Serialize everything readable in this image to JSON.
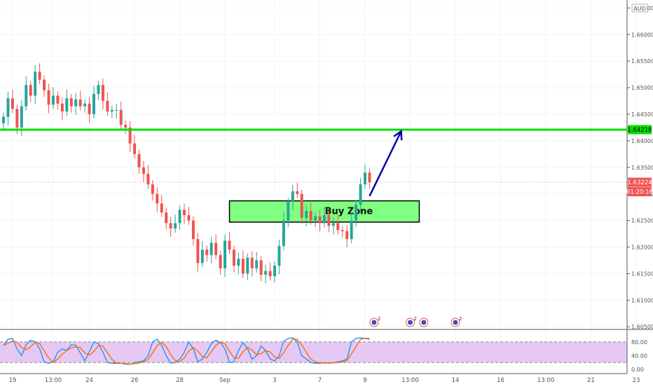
{
  "chart_data": {
    "type": "candlestick",
    "currency": "AUD",
    "price_axis": {
      "min": 1.6045,
      "max": 1.6665,
      "ticks": [
        "1.66500",
        "1.66000",
        "1.65500",
        "1.65000",
        "1.64500",
        "1.64000",
        "1.63500",
        "1.63000",
        "1.62500",
        "1.62000",
        "1.61500",
        "1.61000",
        "1.60500"
      ],
      "tick_values": [
        1.665,
        1.66,
        1.655,
        1.65,
        1.645,
        1.64,
        1.635,
        1.63,
        1.625,
        1.62,
        1.615,
        1.61,
        1.605
      ]
    },
    "time_axis": {
      "labels": [
        "19",
        "13:00",
        "24",
        "26",
        "28",
        "Sep",
        "3",
        "7",
        "9",
        "13:00",
        "14",
        "16",
        "13:00",
        "21",
        "23"
      ],
      "label_index": [
        2,
        11,
        19,
        29,
        39,
        49,
        60,
        70,
        80,
        90,
        100,
        110,
        120,
        130,
        140
      ]
    },
    "resistance_line": {
      "price": 1.6421,
      "label": "1.64218",
      "color": "#00e000"
    },
    "current_price": {
      "label": "1.63224",
      "countdown": "01:20:16",
      "price": 1.6322,
      "color": "#ef5350"
    },
    "buy_zone": {
      "label": "Buy Zone",
      "price_top": 1.6287,
      "price_bottom": 1.6247,
      "bar_start": 50,
      "bar_end": 92,
      "fill": "#80ff80"
    },
    "arrow": {
      "from_bar": 81,
      "from_price": 1.6296,
      "to_bar": 88,
      "to_price": 1.6418,
      "color": "#0000aa"
    },
    "closes": [
      1.6445,
      1.648,
      1.646,
      1.6425,
      1.6465,
      1.6505,
      1.6485,
      1.653,
      1.6515,
      1.6495,
      1.6468,
      1.6485,
      1.647,
      1.6455,
      1.648,
      1.6465,
      1.6478,
      1.6465,
      1.647,
      1.645,
      1.6488,
      1.6505,
      1.6475,
      1.6455,
      1.6458,
      1.6458,
      1.643,
      1.6425,
      1.6395,
      1.6375,
      1.635,
      1.6338,
      1.6318,
      1.63,
      1.6282,
      1.6265,
      1.6245,
      1.6235,
      1.6245,
      1.627,
      1.626,
      1.625,
      1.6215,
      1.617,
      1.6195,
      1.6185,
      1.6208,
      1.6185,
      1.616,
      1.6212,
      1.6195,
      1.6165,
      1.6178,
      1.615,
      1.618,
      1.616,
      1.6175,
      1.6148,
      1.6155,
      1.6145,
      1.6165,
      1.6202,
      1.625,
      1.6285,
      1.6305,
      1.63,
      1.6255,
      1.6268,
      1.625,
      1.6258,
      1.6245,
      1.626,
      1.624,
      1.6245,
      1.6232,
      1.623,
      1.6215,
      1.625,
      1.628,
      1.6318,
      1.634,
      1.6322
    ],
    "stochastic": {
      "axis_ticks": [
        "80.00",
        "40.00",
        "0.00"
      ],
      "tick_values": [
        80,
        40,
        0
      ],
      "band_upper": 80,
      "band_lower": 20,
      "band_fill": "#e6c8f5",
      "k_color": "#2196f3",
      "d_color": "#ff6d00",
      "values": [
        70,
        88,
        90,
        60,
        40,
        72,
        85,
        80,
        60,
        22,
        18,
        22,
        50,
        60,
        55,
        72,
        70,
        48,
        25,
        52,
        80,
        75,
        50,
        20,
        18,
        18,
        18,
        15,
        15,
        20,
        22,
        25,
        40,
        80,
        88,
        70,
        40,
        18,
        20,
        30,
        50,
        80,
        60,
        22,
        30,
        50,
        75,
        85,
        78,
        60,
        20,
        22,
        55,
        78,
        60,
        30,
        40,
        68,
        55,
        30,
        25,
        40,
        82,
        90,
        92,
        80,
        40,
        30,
        20,
        18,
        18,
        20,
        18,
        20,
        22,
        25,
        30,
        80,
        90,
        92,
        90,
        88
      ]
    },
    "event_icons": [
      {
        "bar": 82,
        "badge": "2"
      },
      {
        "bar": 90,
        "badge": "2"
      },
      {
        "bar": 93,
        "badge": ""
      },
      {
        "bar": 100,
        "badge": "2"
      }
    ]
  }
}
